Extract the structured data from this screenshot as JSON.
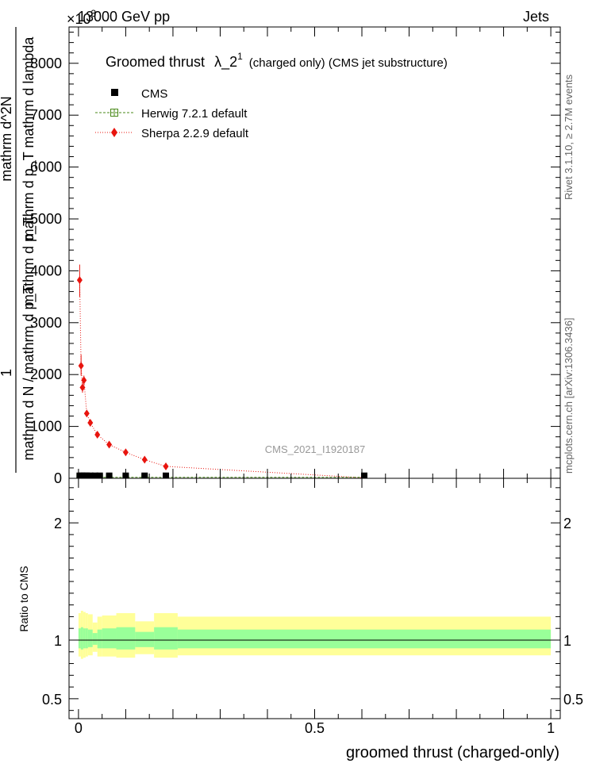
{
  "header": {
    "left": "13000 GeV pp",
    "right": "Jets",
    "exponent": "×10",
    "exponent_power": "3"
  },
  "side_labels": {
    "rivet": "Rivet 3.1.10, ≥ 2.7M events",
    "mcplots": "mcplots.cern.ch [arXiv:1306.3436]"
  },
  "watermark": "CMS_2021_I1920187",
  "chart_data": [
    {
      "type": "scatter",
      "title": "Groomed thrust",
      "title_symbol": "λ_2",
      "title_superscript": "1",
      "title_suffix": "(charged only) (CMS jet substructure)",
      "xlabel": "groomed thrust (charged-only)",
      "ylabel_numerator": "1",
      "ylabel_denominator": "mathrm d N / mathrm d p_T",
      "ylabel_fraction_num": "mathrm d^2N",
      "ylabel_fraction_den": "mathrm d p_T mathrm d lambda",
      "ylabel_overlap": "mathrm d p_T",
      "xlim": [
        -0.02,
        1.02
      ],
      "ylim": [
        0,
        8.7
      ],
      "y_multiplier": 1000,
      "yticks": [
        0,
        1,
        2,
        3,
        4,
        5,
        6,
        7,
        8
      ],
      "ytick_labels": [
        "0",
        "1000",
        "2000",
        "3000",
        "4000",
        "5000",
        "6000",
        "7000",
        "8000"
      ],
      "legend": [
        {
          "name": "CMS",
          "marker": "square-filled",
          "color": "#000000"
        },
        {
          "name": "Herwig 7.2.1 default",
          "marker": "square-open",
          "color": "#4a8a1a"
        },
        {
          "name": "Sherpa 2.2.9 default",
          "marker": "diamond",
          "color": "#e8140e"
        }
      ],
      "series": [
        {
          "name": "CMS",
          "x": [
            0.0025,
            0.0075,
            0.0125,
            0.0175,
            0.025,
            0.035,
            0.045,
            0.065,
            0.1,
            0.14,
            0.185,
            0.605
          ],
          "values": [
            0.05,
            0.05,
            0.05,
            0.05,
            0.05,
            0.05,
            0.05,
            0.05,
            0.05,
            0.05,
            0.05,
            0.05
          ]
        },
        {
          "name": "Herwig 7.2.1 default",
          "x": [
            0.0025,
            0.0075,
            0.0125,
            0.0175,
            0.025,
            0.035,
            0.045,
            0.065,
            0.1,
            0.14,
            0.185,
            0.605
          ],
          "values": [
            0.02,
            0.02,
            0.02,
            0.02,
            0.02,
            0.02,
            0.02,
            0.02,
            0.02,
            0.02,
            0.02,
            0.02
          ]
        },
        {
          "name": "Sherpa 2.2.9 default",
          "x": [
            0.0025,
            0.0055,
            0.0085,
            0.0115,
            0.0175,
            0.025,
            0.04,
            0.065,
            0.1,
            0.14,
            0.185,
            0.605
          ],
          "values": [
            3.82,
            2.17,
            1.75,
            1.89,
            1.25,
            1.07,
            0.84,
            0.65,
            0.5,
            0.36,
            0.23,
            0.01
          ],
          "err_hi": [
            4.12,
            2.38,
            1.84,
            1.98,
            1.3,
            1.1,
            0.86,
            0.67,
            0.52,
            0.37,
            0.24,
            0.02
          ],
          "err_lo": [
            3.5,
            1.98,
            1.65,
            1.8,
            1.2,
            1.03,
            0.82,
            0.63,
            0.48,
            0.35,
            0.22,
            0.0
          ]
        }
      ]
    },
    {
      "type": "area",
      "ylabel": "Ratio to CMS",
      "xlim": [
        -0.02,
        1.02
      ],
      "ylim": [
        0.33,
        2.38
      ],
      "xticks": [
        0,
        0.5,
        1
      ],
      "xtick_labels": [
        "0",
        "0.5",
        "1"
      ],
      "yticks": [
        0.5,
        1,
        2
      ],
      "ytick_labels": [
        "0.5",
        "1",
        "2"
      ],
      "bands": [
        {
          "name": "total uncertainty",
          "color": "#ffff99",
          "edges": [
            0,
            0.005,
            0.01,
            0.015,
            0.02,
            0.03,
            0.04,
            0.05,
            0.08,
            0.12,
            0.16,
            0.21,
            1.0
          ],
          "upper": [
            1.23,
            1.25,
            1.24,
            1.23,
            1.22,
            1.15,
            1.2,
            1.21,
            1.23,
            1.16,
            1.23,
            1.2
          ],
          "lower": [
            0.86,
            0.84,
            0.85,
            0.86,
            0.87,
            0.9,
            0.86,
            0.86,
            0.85,
            0.88,
            0.85,
            0.87
          ]
        },
        {
          "name": "statistical uncertainty",
          "color": "#99ff99",
          "edges": [
            0,
            0.005,
            0.01,
            0.015,
            0.02,
            0.03,
            0.04,
            0.05,
            0.08,
            0.12,
            0.16,
            0.21,
            1.0
          ],
          "upper": [
            1.1,
            1.11,
            1.1,
            1.1,
            1.09,
            1.06,
            1.09,
            1.1,
            1.11,
            1.07,
            1.11,
            1.09
          ],
          "lower": [
            0.93,
            0.92,
            0.93,
            0.93,
            0.94,
            0.96,
            0.93,
            0.93,
            0.92,
            0.94,
            0.92,
            0.93
          ]
        }
      ]
    }
  ]
}
